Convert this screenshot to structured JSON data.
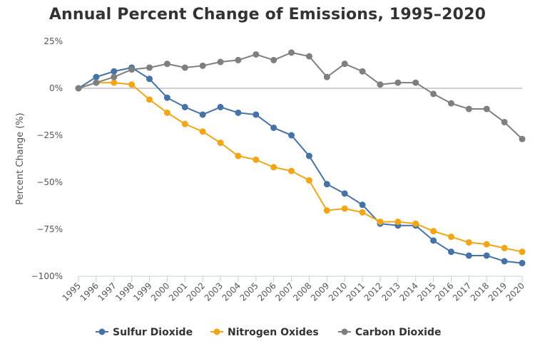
{
  "chart_data": {
    "type": "line",
    "title": "Annual Percent Change of Emissions, 1995–2020",
    "xlabel": "",
    "ylabel": "Percent Change (%)",
    "x": [
      "1995",
      "1996",
      "1997",
      "1998",
      "1999",
      "2000",
      "2001",
      "2002",
      "2003",
      "2004",
      "2005",
      "2006",
      "2007",
      "2008",
      "2009",
      "2010",
      "2011",
      "2012",
      "2013",
      "2014",
      "2015",
      "2016",
      "2017",
      "2018",
      "2019",
      "2020"
    ],
    "ylim": [
      -100,
      25
    ],
    "yticks": [
      25,
      0,
      -25,
      -50,
      -75,
      -100
    ],
    "ytick_labels": [
      "25%",
      "0%",
      "−25%",
      "−50%",
      "−75%",
      "−100%"
    ],
    "grid": false,
    "legend_position": "bottom",
    "series": [
      {
        "name": "Sulfur Dioxide",
        "color": "#4572a7",
        "values": [
          0,
          6,
          9,
          11,
          5,
          -5,
          -10,
          -14,
          -10,
          -13,
          -14,
          -21,
          -25,
          -36,
          -51,
          -56,
          -62,
          -72,
          -73,
          -73,
          -81,
          -87,
          -89,
          -89,
          -92,
          -93
        ]
      },
      {
        "name": "Nitrogen Oxides",
        "color": "#f2a516",
        "values": [
          0,
          3,
          3,
          2,
          -6,
          -13,
          -19,
          -23,
          -29,
          -36,
          -38,
          -42,
          -44,
          -49,
          -65,
          -64,
          -66,
          -71,
          -71,
          -72,
          -76,
          -79,
          -82,
          -83,
          -85,
          -87
        ]
      },
      {
        "name": "Carbon Dioxide",
        "color": "#7f7f7f",
        "values": [
          0,
          3,
          6,
          10,
          11,
          13,
          11,
          12,
          14,
          15,
          18,
          15,
          19,
          17,
          6,
          13,
          9,
          2,
          3,
          3,
          -3,
          -8,
          -11,
          -11,
          -18,
          -27
        ]
      }
    ]
  }
}
